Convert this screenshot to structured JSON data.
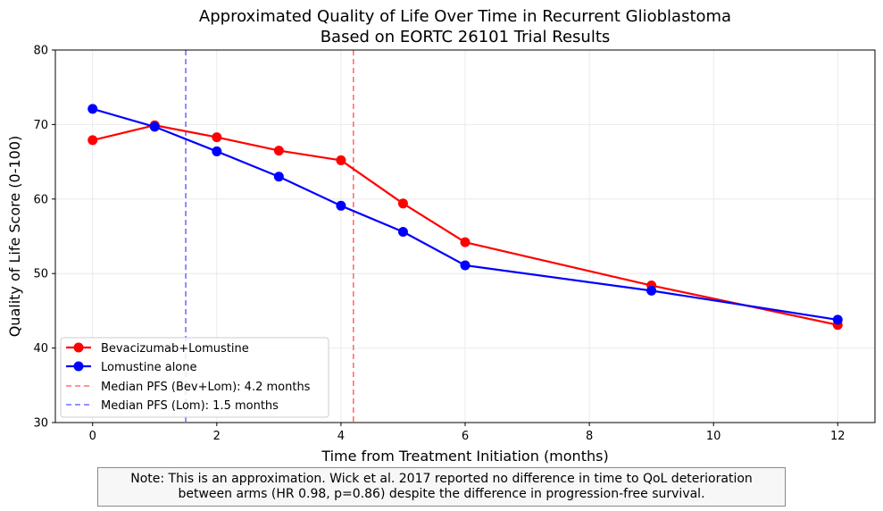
{
  "chart_data": {
    "type": "line",
    "title_line1": "Approximated Quality of Life Over Time in Recurrent Glioblastoma",
    "title_line2": "Based on EORTC 26101 Trial Results",
    "xlabel": "Time from Treatment Initiation (months)",
    "ylabel": "Quality of Life Score (0-100)",
    "xlim": [
      -0.6,
      12.6
    ],
    "ylim": [
      30,
      80
    ],
    "xticks": [
      0,
      2,
      4,
      6,
      8,
      10,
      12
    ],
    "yticks": [
      30,
      40,
      50,
      60,
      70,
      80
    ],
    "grid": true,
    "legend_position": "lower-left",
    "x": [
      0,
      1,
      2,
      3,
      4,
      5,
      6,
      9,
      12
    ],
    "series": [
      {
        "name": "Bevacizumab+Lomustine",
        "color": "#ff0000",
        "values": [
          67.9,
          69.9,
          68.3,
          66.5,
          65.2,
          59.4,
          54.2,
          48.4,
          43.1
        ]
      },
      {
        "name": "Lomustine alone",
        "color": "#0000ff",
        "values": [
          72.1,
          69.7,
          66.4,
          63.0,
          59.1,
          55.6,
          51.1,
          47.7,
          43.8
        ]
      }
    ],
    "reference_lines": [
      {
        "name": "Median PFS (Bev+Lom): 4.2 months",
        "x": 4.2,
        "color": "#ff7070"
      },
      {
        "name": "Median PFS (Lom): 1.5 months",
        "x": 1.5,
        "color": "#7070ff"
      }
    ]
  },
  "note": {
    "line1": "Note: This is an approximation. Wick et al. 2017 reported no difference in time to QoL deterioration",
    "line2": "between arms (HR 0.98, p=0.86) despite the difference in progression-free survival."
  }
}
